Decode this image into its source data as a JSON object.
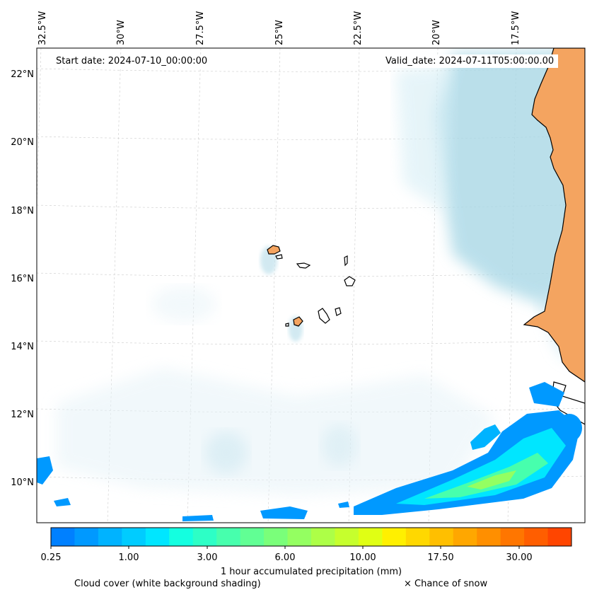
{
  "map": {
    "start_date": "Start date: 2024-07-10_00:00:00",
    "valid_date": "Valid_date: 2024-07-11T05:00:00.00",
    "lon_ticks": [
      "32.5°W",
      "30°W",
      "27.5°W",
      "25°W",
      "22.5°W",
      "20°W",
      "17.5°W"
    ],
    "lat_ticks": [
      "22°N",
      "20°N",
      "18°N",
      "16°N",
      "14°N",
      "12°N",
      "10°N"
    ],
    "land_color": "#f4a460",
    "cloud_color": "#a9d8e6"
  },
  "colorbar": {
    "colors": [
      "#0080ff",
      "#0099ff",
      "#00b3ff",
      "#00ccff",
      "#00e6ff",
      "#14ffe0",
      "#2dffc6",
      "#47ffad",
      "#61ff94",
      "#7aff7a",
      "#94ff61",
      "#adff47",
      "#c6ff2d",
      "#e0ff14",
      "#fff000",
      "#ffd800",
      "#ffbf00",
      "#ffa700",
      "#ff8f00",
      "#ff7600",
      "#ff5e00",
      "#ff4500"
    ],
    "tick_labels": [
      "0.25",
      "1.00",
      "3.00",
      "6.00",
      "10.00",
      "17.50",
      "30.00"
    ],
    "label": "1 hour accumulated precipitation (mm)"
  },
  "captions": {
    "cloud": "Cloud cover (white background shading)",
    "snow": "× Chance of snow"
  }
}
